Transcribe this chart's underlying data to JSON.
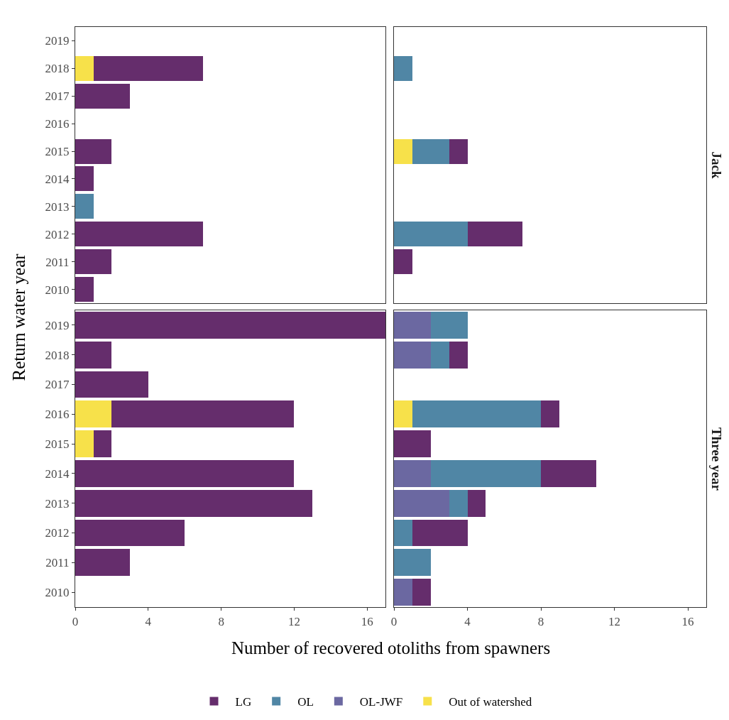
{
  "chart_data": [
    {
      "type": "bar",
      "orientation": "horizontal",
      "stacked": true,
      "ylabel": "Return water year",
      "categories": [
        "2019",
        "2018",
        "2017",
        "2016",
        "2015",
        "2014",
        "2013",
        "2012",
        "2011",
        "2010"
      ],
      "xlim": [
        0,
        17
      ],
      "xticks": [
        0,
        4,
        8,
        12,
        16
      ],
      "grid": false,
      "legend": "bottom",
      "tick_labels": "y",
      "series": [
        {
          "name": "Out of watershed",
          "color": "#f7e14a",
          "values": [
            null,
            1,
            null,
            null,
            null,
            null,
            null,
            null,
            null,
            null
          ]
        },
        {
          "name": "OL",
          "color": "#5086a5",
          "values": [
            null,
            null,
            null,
            null,
            null,
            null,
            1,
            null,
            null,
            null
          ]
        },
        {
          "name": "LG",
          "color": "#652d6c",
          "values": [
            null,
            6,
            3,
            null,
            2,
            1,
            null,
            7,
            2,
            1
          ]
        }
      ]
    },
    {
      "type": "bar",
      "orientation": "horizontal",
      "stacked": true,
      "title": "Jack",
      "categories": [
        "2019",
        "2018",
        "2017",
        "2016",
        "2015",
        "2014",
        "2013",
        "2012",
        "2011",
        "2010"
      ],
      "xlim": [
        0,
        17
      ],
      "xticks": [
        0,
        4,
        8,
        12,
        16
      ],
      "grid": false,
      "legend": "bottom",
      "tick_labels": false,
      "series": [
        {
          "name": "Out of watershed",
          "color": "#f7e14a",
          "values": [
            null,
            null,
            null,
            null,
            1,
            null,
            null,
            null,
            null,
            null
          ]
        },
        {
          "name": "OL",
          "color": "#5086a5",
          "values": [
            null,
            1,
            null,
            null,
            2,
            null,
            null,
            4,
            null,
            null
          ]
        },
        {
          "name": "LG",
          "color": "#652d6c",
          "values": [
            null,
            null,
            null,
            null,
            1,
            null,
            null,
            3,
            1,
            null
          ]
        }
      ]
    },
    {
      "type": "bar",
      "orientation": "horizontal",
      "stacked": true,
      "xlabel": "Number of recovered otoliths from spawners",
      "categories": [
        "2019",
        "2018",
        "2017",
        "2016",
        "2015",
        "2014",
        "2013",
        "2012",
        "2011",
        "2010"
      ],
      "xlim": [
        0,
        17
      ],
      "xticks": [
        0,
        4,
        8,
        12,
        16
      ],
      "grid": false,
      "legend": "bottom",
      "series": [
        {
          "name": "Out of watershed",
          "color": "#f7e14a",
          "values": [
            null,
            null,
            null,
            2,
            1,
            null,
            null,
            null,
            null,
            null
          ]
        },
        {
          "name": "LG",
          "color": "#652d6c",
          "values": [
            17,
            2,
            4,
            10,
            1,
            12,
            13,
            6,
            3,
            null
          ]
        }
      ]
    },
    {
      "type": "bar",
      "orientation": "horizontal",
      "stacked": true,
      "title": "Three year",
      "categories": [
        "2019",
        "2018",
        "2017",
        "2016",
        "2015",
        "2014",
        "2013",
        "2012",
        "2011",
        "2010"
      ],
      "xlim": [
        0,
        17
      ],
      "xticks": [
        0,
        4,
        8,
        12,
        16
      ],
      "grid": false,
      "legend": "bottom",
      "tick_labels": "x",
      "series": [
        {
          "name": "Out of watershed",
          "color": "#f7e14a",
          "values": [
            null,
            null,
            null,
            1,
            null,
            null,
            null,
            null,
            null,
            null
          ]
        },
        {
          "name": "OL-JWF",
          "color": "#6b68a1",
          "values": [
            2,
            2,
            null,
            null,
            null,
            2,
            3,
            null,
            null,
            1
          ]
        },
        {
          "name": "OL",
          "color": "#5086a5",
          "values": [
            2,
            1,
            null,
            7,
            null,
            6,
            1,
            1,
            2,
            null
          ]
        },
        {
          "name": "LG",
          "color": "#652d6c",
          "values": [
            null,
            1,
            null,
            1,
            2,
            3,
            1,
            3,
            null,
            1
          ]
        }
      ]
    }
  ]
}
